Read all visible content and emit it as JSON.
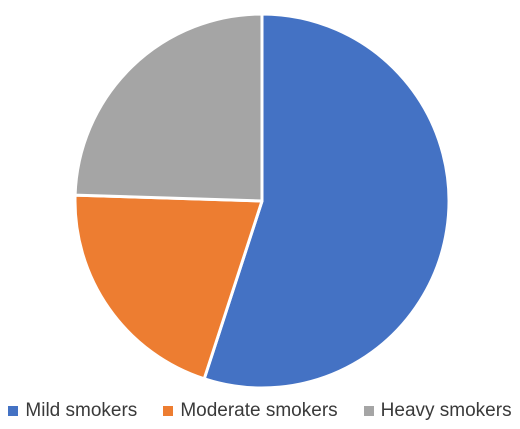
{
  "chart_data": {
    "type": "pie",
    "categories": [
      "Mild smokers",
      "Moderate smokers",
      "Heavy smokers"
    ],
    "values": [
      55,
      20.5,
      24.5
    ],
    "colors": [
      "#4472C4",
      "#ED7D31",
      "#A5A5A5"
    ],
    "start_angle_deg": 0,
    "direction": "clockwise",
    "legend_position": "bottom",
    "title": ""
  }
}
